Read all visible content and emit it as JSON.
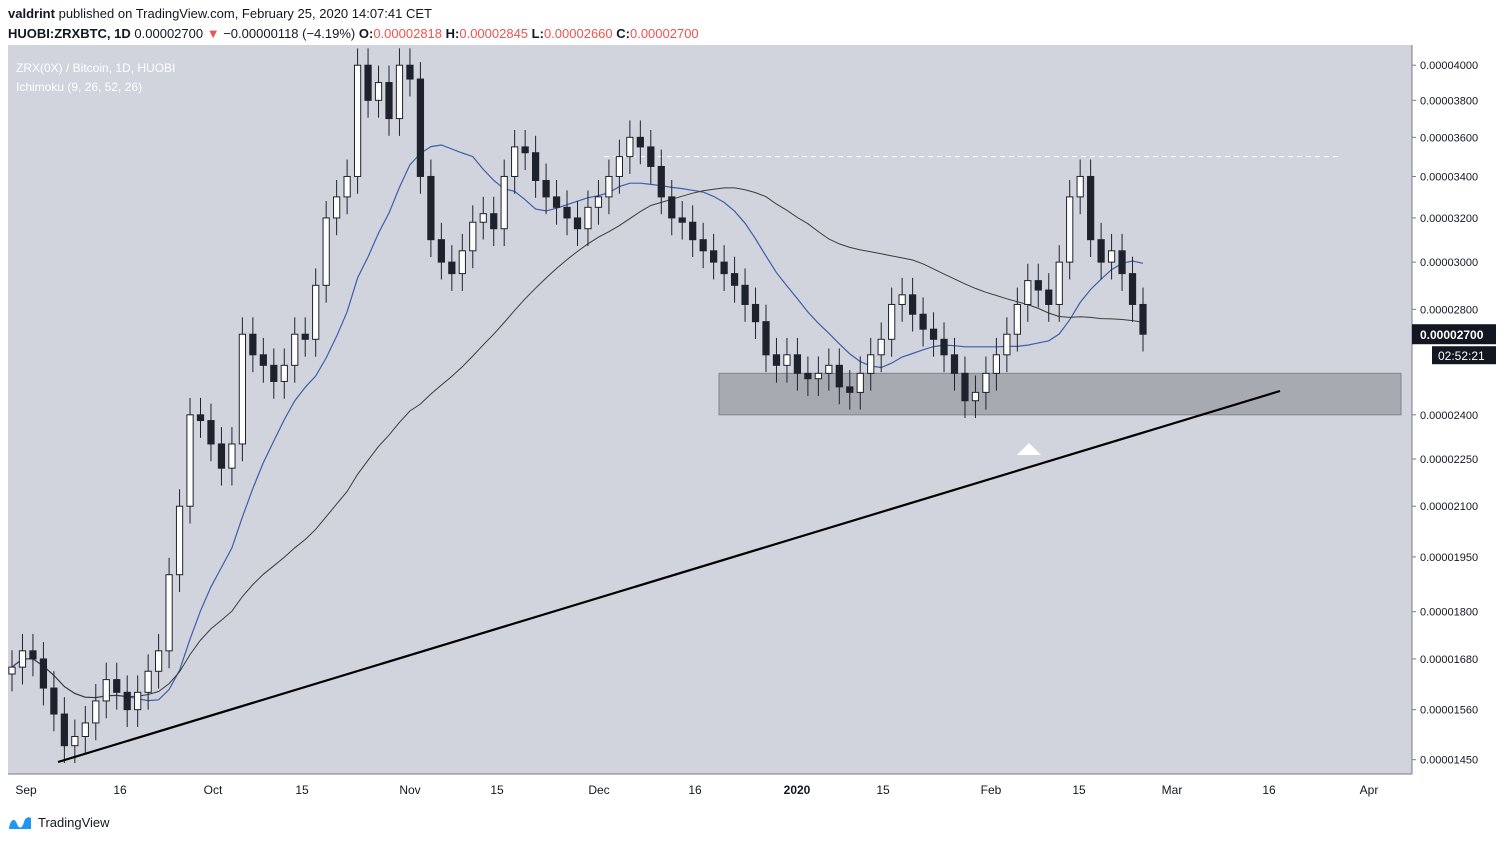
{
  "header": {
    "user": "valdrint",
    "published_text": "published on TradingView.com, February 25, 2020 14:07:41 CET"
  },
  "ohlc": {
    "symbol": "HUOBI:ZRXBTC, 1D",
    "last": "0.00002700",
    "change_arrow": "▼",
    "change": "−0.00000118 (−4.19%)",
    "o_label": "O:",
    "o": "0.00002818",
    "h_label": "H:",
    "h": "0.00002845",
    "l_label": "L:",
    "l": "0.00002660",
    "c_label": "C:",
    "c": "0.00002700"
  },
  "footer": {
    "brand": "TradingView",
    "logo_icon": "tradingview-logo-icon"
  },
  "colors": {
    "background": "#d1d4dc",
    "up_candle": "#ffffff",
    "down_candle": "#1e222d",
    "ma_blue": "#3c5eaa",
    "ma_dark": "#3b3b3b",
    "trendline": "#000000",
    "support_zone": "#a4a6ad",
    "negative": "#ef5350"
  },
  "chart_data": {
    "type": "candlestick",
    "title": "ZRX(0X) / Bitcoin, 1D, HUOBI",
    "subtitle": "Ichimoku (9, 26, 52, 26)",
    "x_ticks": [
      "Sep",
      "16",
      "Oct",
      "15",
      "Nov",
      "15",
      "Dec",
      "16",
      "2020",
      "15",
      "Feb",
      "15",
      "Mar",
      "16",
      "Apr"
    ],
    "y_ticks": [
      "0.00004000",
      "0.00003800",
      "0.00003600",
      "0.00003400",
      "0.00003200",
      "0.00003000",
      "0.00002800",
      "0.00002400",
      "0.00002250",
      "0.00002100",
      "0.00001950",
      "0.00001800",
      "0.00001680",
      "0.00001560",
      "0.00001450"
    ],
    "y_scale": "log",
    "last_price_label": "0.00002700",
    "countdown_label": "02:52:21",
    "candles_close": [
      1.66e-05,
      1.7e-05,
      1.68e-05,
      1.61e-05,
      1.55e-05,
      1.48e-05,
      1.5e-05,
      1.53e-05,
      1.58e-05,
      1.63e-05,
      1.6e-05,
      1.56e-05,
      1.6e-05,
      1.65e-05,
      1.7e-05,
      1.9e-05,
      2.1e-05,
      2.4e-05,
      2.38e-05,
      2.3e-05,
      2.22e-05,
      2.3e-05,
      2.7e-05,
      2.62e-05,
      2.58e-05,
      2.52e-05,
      2.58e-05,
      2.7e-05,
      2.68e-05,
      2.9e-05,
      3.2e-05,
      3.3e-05,
      3.4e-05,
      4e-05,
      3.8e-05,
      3.9e-05,
      3.7e-05,
      4e-05,
      3.92e-05,
      3.4e-05,
      3.1e-05,
      3e-05,
      2.95e-05,
      3.05e-05,
      3.18e-05,
      3.22e-05,
      3.15e-05,
      3.4e-05,
      3.55e-05,
      3.52e-05,
      3.38e-05,
      3.3e-05,
      3.25e-05,
      3.2e-05,
      3.15e-05,
      3.25e-05,
      3.3e-05,
      3.4e-05,
      3.5e-05,
      3.6e-05,
      3.55e-05,
      3.45e-05,
      3.3e-05,
      3.2e-05,
      3.18e-05,
      3.1e-05,
      3.05e-05,
      3e-05,
      2.95e-05,
      2.9e-05,
      2.82e-05,
      2.75e-05,
      2.62e-05,
      2.58e-05,
      2.62e-05,
      2.55e-05,
      2.53e-05,
      2.55e-05,
      2.58e-05,
      2.5e-05,
      2.48e-05,
      2.55e-05,
      2.62e-05,
      2.68e-05,
      2.82e-05,
      2.86e-05,
      2.78e-05,
      2.72e-05,
      2.68e-05,
      2.62e-05,
      2.55e-05,
      2.45e-05,
      2.48e-05,
      2.55e-05,
      2.62e-05,
      2.7e-05,
      2.82e-05,
      2.92e-05,
      2.88e-05,
      2.82e-05,
      3e-05,
      3.3e-05,
      3.4e-05,
      3.1e-05,
      3e-05,
      3.05e-05,
      2.95e-05,
      2.82e-05,
      2.7e-05
    ],
    "ma_blue_label": "Ichimoku base/lagging line (blue)",
    "ma_dark_label": "Moving average (dark)",
    "annotations": {
      "resistance_level": 3.5e-05,
      "support_zone": [
        2.4e-05,
        2.55e-05
      ],
      "ascending_trendline": [
        [
          1.45e-05,
          "Sep"
        ],
        [
          2.8e-05,
          "Mar"
        ]
      ]
    }
  }
}
